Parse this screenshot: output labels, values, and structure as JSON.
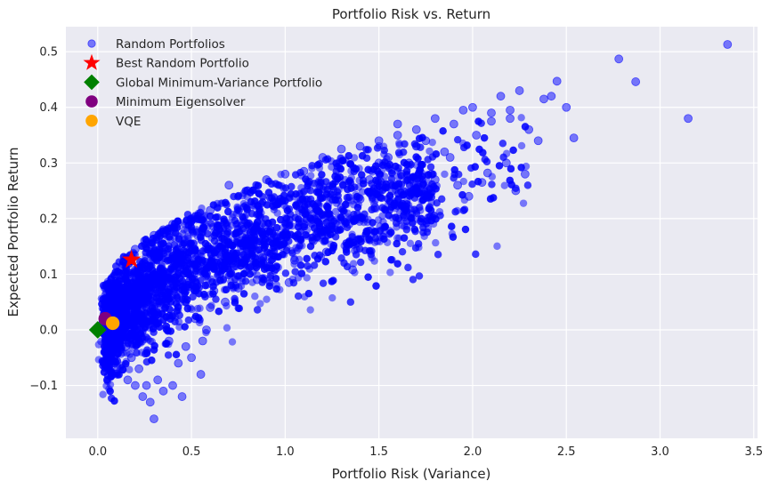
{
  "chart_data": {
    "type": "scatter",
    "title": "Portfolio Risk vs. Return",
    "xlabel": "Portfolio Risk (Variance)",
    "ylabel": "Expected Portfolio Return",
    "xlim": [
      -0.17,
      3.52
    ],
    "ylim": [
      -0.195,
      0.545
    ],
    "x_ticks": [
      0.0,
      0.5,
      1.0,
      1.5,
      2.0,
      2.5,
      3.0,
      3.5
    ],
    "x_tick_labels": [
      "0.0",
      "0.5",
      "1.0",
      "1.5",
      "2.0",
      "2.5",
      "3.0",
      "3.5"
    ],
    "y_ticks": [
      -0.1,
      0.0,
      0.1,
      0.2,
      0.3,
      0.4,
      0.5
    ],
    "y_tick_labels": [
      "−0.1",
      "0.0",
      "0.1",
      "0.2",
      "0.3",
      "0.4",
      "0.5"
    ],
    "grid": true,
    "legend_position": "top-left",
    "background": "#eaeaf2",
    "series": [
      {
        "name": "Random Portfolios",
        "marker": "circle",
        "color": "#0000ff",
        "alpha": 0.5,
        "points": [
          [
            3.36,
            0.513
          ],
          [
            3.15,
            0.38
          ],
          [
            2.87,
            0.446
          ],
          [
            2.78,
            0.487
          ],
          [
            2.54,
            0.345
          ],
          [
            2.5,
            0.4
          ],
          [
            2.45,
            0.447
          ],
          [
            2.42,
            0.42
          ],
          [
            2.38,
            0.415
          ],
          [
            2.35,
            0.34
          ],
          [
            2.3,
            0.36
          ],
          [
            2.28,
            0.28
          ],
          [
            2.25,
            0.43
          ],
          [
            2.23,
            0.25
          ],
          [
            2.2,
            0.395
          ],
          [
            2.18,
            0.3
          ],
          [
            2.15,
            0.42
          ],
          [
            2.1,
            0.39
          ],
          [
            2.08,
            0.282
          ],
          [
            2.05,
            0.265
          ],
          [
            2.02,
            0.35
          ],
          [
            1.98,
            0.24
          ],
          [
            1.95,
            0.395
          ],
          [
            1.92,
            0.26
          ],
          [
            1.88,
            0.31
          ],
          [
            1.85,
            0.32
          ],
          [
            1.8,
            0.27
          ],
          [
            1.78,
            0.28
          ],
          [
            1.75,
            0.34
          ],
          [
            1.7,
            0.33
          ],
          [
            1.66,
            0.3
          ],
          [
            1.62,
            0.28
          ],
          [
            1.6,
            0.35
          ],
          [
            1.57,
            0.25
          ],
          [
            1.55,
            0.31
          ],
          [
            1.52,
            0.26
          ],
          [
            1.5,
            0.3
          ],
          [
            1.48,
            0.22
          ],
          [
            1.45,
            0.27
          ],
          [
            1.42,
            0.2
          ],
          [
            1.4,
            0.235
          ],
          [
            1.38,
            0.16
          ],
          [
            1.36,
            0.108
          ],
          [
            1.34,
            0.19
          ],
          [
            1.3,
            0.22
          ],
          [
            1.25,
            0.175
          ],
          [
            1.22,
            0.14
          ],
          [
            1.18,
            0.205
          ],
          [
            1.15,
            0.16
          ],
          [
            1.1,
            0.19
          ],
          [
            1.05,
            0.125
          ],
          [
            1.02,
            0.085
          ],
          [
            0.98,
            0.15
          ],
          [
            0.95,
            0.11
          ],
          [
            0.92,
            0.16
          ],
          [
            0.88,
            0.13
          ],
          [
            0.85,
            0.09
          ],
          [
            0.8,
            0.15
          ],
          [
            0.75,
            0.075
          ],
          [
            0.72,
            0.12
          ],
          [
            0.68,
            0.05
          ],
          [
            0.65,
            0.1
          ],
          [
            0.62,
            0.07
          ],
          [
            0.6,
            0.04
          ],
          [
            0.58,
            0.0
          ],
          [
            0.56,
            -0.02
          ],
          [
            0.55,
            -0.08
          ],
          [
            0.52,
            0.02
          ],
          [
            0.5,
            -0.05
          ],
          [
            0.47,
            -0.03
          ],
          [
            0.45,
            -0.12
          ],
          [
            0.43,
            -0.06
          ],
          [
            0.4,
            -0.1
          ],
          [
            0.38,
            -0.02
          ],
          [
            0.35,
            -0.11
          ],
          [
            0.32,
            -0.09
          ],
          [
            0.3,
            -0.16
          ],
          [
            0.28,
            -0.13
          ],
          [
            0.26,
            -0.1
          ],
          [
            0.24,
            -0.12
          ],
          [
            0.22,
            -0.07
          ],
          [
            0.2,
            -0.1
          ],
          [
            0.18,
            -0.05
          ],
          [
            0.16,
            -0.09
          ],
          [
            0.15,
            -0.03
          ],
          [
            0.13,
            -0.07
          ],
          [
            0.12,
            -0.02
          ],
          [
            0.1,
            -0.04
          ],
          [
            0.08,
            -0.01
          ],
          [
            0.07,
            0.02
          ],
          [
            0.09,
            0.06
          ],
          [
            0.12,
            0.09
          ],
          [
            0.15,
            0.12
          ],
          [
            0.2,
            0.145
          ],
          [
            0.25,
            0.16
          ],
          [
            0.3,
            0.17
          ],
          [
            0.35,
            0.18
          ],
          [
            0.4,
            0.19
          ],
          [
            0.5,
            0.2
          ],
          [
            0.6,
            0.215
          ],
          [
            0.7,
            0.26
          ],
          [
            0.8,
            0.25
          ],
          [
            0.9,
            0.27
          ],
          [
            1.0,
            0.28
          ],
          [
            1.1,
            0.285
          ],
          [
            1.2,
            0.31
          ],
          [
            1.3,
            0.325
          ],
          [
            1.4,
            0.33
          ],
          [
            1.5,
            0.34
          ],
          [
            1.6,
            0.37
          ],
          [
            1.7,
            0.36
          ],
          [
            1.8,
            0.38
          ],
          [
            1.9,
            0.37
          ],
          [
            2.0,
            0.4
          ],
          [
            2.1,
            0.375
          ],
          [
            2.2,
            0.38
          ]
        ]
      },
      {
        "name": "Best Random Portfolio",
        "marker": "star",
        "color": "#ff0000",
        "points": [
          [
            0.18,
            0.126
          ]
        ]
      },
      {
        "name": "Global Minimum-Variance Portfolio",
        "marker": "diamond",
        "color": "#008000",
        "points": [
          [
            0.0,
            0.0
          ]
        ]
      },
      {
        "name": "Minimum Eigensolver",
        "marker": "circle",
        "color": "#800080",
        "points": [
          [
            0.04,
            0.02
          ]
        ]
      },
      {
        "name": "VQE",
        "marker": "circle",
        "color": "#ffa500",
        "points": [
          [
            0.08,
            0.012
          ]
        ]
      }
    ]
  }
}
